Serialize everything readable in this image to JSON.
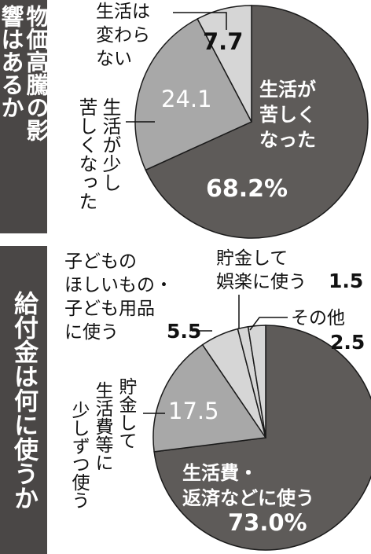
{
  "panel1": {
    "title": "物価高騰の影響はあるか"
  },
  "panel2": {
    "title": "給付金は何に使うか"
  },
  "colors": {
    "dark": "#5e5b59",
    "medium": "#a8a8a8",
    "light": "#d6d6d6",
    "title_bg": "#4a4746",
    "title_text": "#ffffff",
    "outline": "#1a1a1a"
  },
  "chart_data": [
    {
      "type": "pie",
      "title": "物価高騰の影響はあるか",
      "slices": [
        {
          "label": "生活が苦しくなった",
          "value": 68.2,
          "value_text": "68.2%",
          "color": "dark"
        },
        {
          "label": "生活が少し苦しくなった",
          "value": 24.1,
          "value_text": "24.1",
          "color": "medium"
        },
        {
          "label": "生活は変わらない",
          "value": 7.7,
          "value_text": "7.7",
          "color": "light"
        }
      ]
    },
    {
      "type": "pie",
      "title": "給付金は何に使うか",
      "slices": [
        {
          "label": "生活費・返済などに使う",
          "value": 73.0,
          "value_text": "73.0%",
          "color": "dark"
        },
        {
          "label": "貯金して少しずつ生活費等に使う",
          "value": 17.5,
          "value_text": "17.5",
          "color": "medium"
        },
        {
          "label": "子どものほしいもの・子ども用品に使う",
          "value": 5.5,
          "value_text": "5.5",
          "color": "light"
        },
        {
          "label": "貯金して娯楽に使う",
          "value": 1.5,
          "value_text": "1.5",
          "color": "light"
        },
        {
          "label": "その他",
          "value": 2.5,
          "value_text": "2.5",
          "color": "light"
        }
      ]
    }
  ]
}
